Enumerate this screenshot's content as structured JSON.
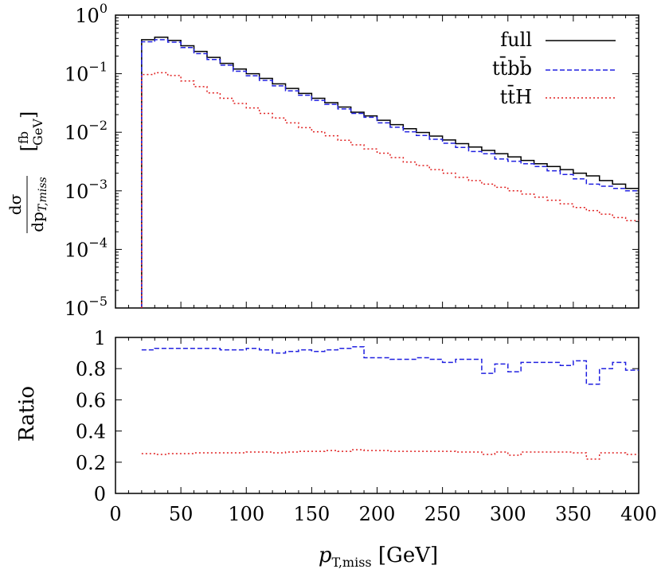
{
  "chart_data": [
    {
      "type": "line",
      "panel": "top",
      "yscale": "log",
      "ylabel": "dσ/dp_T,miss [fb/GeV]",
      "xlim": [
        0,
        400
      ],
      "ylim": [
        1e-05,
        1
      ],
      "x_ticks": [
        "0",
        "50",
        "100",
        "150",
        "200",
        "250",
        "300",
        "350",
        "400"
      ],
      "y_ticks": [
        {
          "base": "10",
          "exp": "0"
        },
        {
          "base": "10",
          "exp": "−1"
        },
        {
          "base": "10",
          "exp": "−2"
        },
        {
          "base": "10",
          "exp": "−3"
        },
        {
          "base": "10",
          "exp": "−4"
        },
        {
          "base": "10",
          "exp": "−5"
        }
      ],
      "legend_position": "top-right",
      "bin_edges": [
        20,
        30,
        40,
        50,
        60,
        70,
        80,
        90,
        100,
        110,
        120,
        130,
        140,
        150,
        160,
        170,
        180,
        190,
        200,
        210,
        220,
        230,
        240,
        250,
        260,
        270,
        280,
        290,
        300,
        310,
        320,
        330,
        340,
        350,
        360,
        370,
        380,
        390,
        400
      ],
      "series": [
        {
          "name": "full",
          "color": "#000000",
          "dash": "solid",
          "values": [
            0.38,
            0.42,
            0.37,
            0.3,
            0.24,
            0.19,
            0.15,
            0.12,
            0.1,
            0.083,
            0.067,
            0.056,
            0.046,
            0.038,
            0.032,
            0.027,
            0.022,
            0.019,
            0.016,
            0.0135,
            0.0115,
            0.0099,
            0.0086,
            0.0074,
            0.0064,
            0.0056,
            0.0049,
            0.0043,
            0.0038,
            0.0033,
            0.0029,
            0.0026,
            0.0023,
            0.002,
            0.0018,
            0.0015,
            0.0013,
            0.0011
          ]
        },
        {
          "name": "tt̄bb̄",
          "color": "#2020e0",
          "dash": "dashed",
          "values": [
            0.35,
            0.38,
            0.345,
            0.28,
            0.22,
            0.175,
            0.14,
            0.11,
            0.092,
            0.077,
            0.062,
            0.051,
            0.043,
            0.035,
            0.03,
            0.025,
            0.021,
            0.018,
            0.0145,
            0.0122,
            0.0102,
            0.0088,
            0.0076,
            0.0065,
            0.0055,
            0.0047,
            0.0043,
            0.0035,
            0.0032,
            0.0029,
            0.0026,
            0.0022,
            0.0019,
            0.0016,
            0.0013,
            0.0012,
            0.0011,
            0.001
          ]
        },
        {
          "name": "tt̄H",
          "color": "#e02020",
          "dash": "dotted",
          "values": [
            0.097,
            0.104,
            0.093,
            0.075,
            0.06,
            0.047,
            0.038,
            0.031,
            0.026,
            0.021,
            0.0175,
            0.0145,
            0.012,
            0.0102,
            0.0087,
            0.0073,
            0.0061,
            0.0052,
            0.0044,
            0.0037,
            0.0031,
            0.0027,
            0.0023,
            0.002,
            0.0017,
            0.0015,
            0.0013,
            0.00115,
            0.001,
            0.00088,
            0.00078,
            0.00069,
            0.0006,
            0.00052,
            0.00046,
            0.0004,
            0.00035,
            0.00031
          ]
        }
      ]
    },
    {
      "type": "line",
      "panel": "bottom",
      "ylabel": "Ratio",
      "xlabel": "p_T,miss [GeV]",
      "xlim": [
        0,
        400
      ],
      "ylim": [
        0,
        1
      ],
      "x_ticks": [
        "0",
        "50",
        "100",
        "150",
        "200",
        "250",
        "300",
        "350",
        "400"
      ],
      "y_ticks": [
        "0",
        "0.2",
        "0.4",
        "0.6",
        "0.8",
        "1"
      ],
      "bin_edges": [
        20,
        30,
        40,
        50,
        60,
        70,
        80,
        90,
        100,
        110,
        120,
        130,
        140,
        150,
        160,
        170,
        180,
        190,
        200,
        210,
        220,
        230,
        240,
        250,
        260,
        270,
        280,
        290,
        300,
        310,
        320,
        330,
        340,
        350,
        360,
        370,
        380,
        390,
        400
      ],
      "series": [
        {
          "name": "tt̄bb̄",
          "color": "#2020e0",
          "dash": "dashed",
          "values": [
            0.92,
            0.93,
            0.93,
            0.93,
            0.93,
            0.93,
            0.92,
            0.92,
            0.93,
            0.92,
            0.9,
            0.91,
            0.92,
            0.91,
            0.92,
            0.93,
            0.94,
            0.87,
            0.87,
            0.86,
            0.86,
            0.87,
            0.86,
            0.84,
            0.86,
            0.86,
            0.77,
            0.83,
            0.78,
            0.84,
            0.84,
            0.84,
            0.82,
            0.85,
            0.7,
            0.8,
            0.84,
            0.79
          ]
        },
        {
          "name": "tt̄H",
          "color": "#e02020",
          "dash": "dotted",
          "values": [
            0.255,
            0.25,
            0.255,
            0.255,
            0.26,
            0.26,
            0.26,
            0.26,
            0.265,
            0.265,
            0.26,
            0.265,
            0.27,
            0.27,
            0.275,
            0.27,
            0.28,
            0.275,
            0.275,
            0.27,
            0.27,
            0.27,
            0.27,
            0.27,
            0.265,
            0.265,
            0.25,
            0.265,
            0.245,
            0.265,
            0.265,
            0.265,
            0.265,
            0.26,
            0.22,
            0.26,
            0.26,
            0.25
          ]
        }
      ]
    }
  ]
}
